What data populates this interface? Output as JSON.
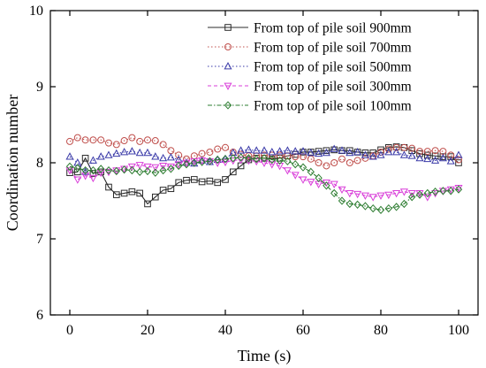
{
  "chart_data": {
    "type": "line",
    "xlabel": "Time (s)",
    "ylabel": "Coordination number",
    "xlim": [
      -5,
      105
    ],
    "ylim": [
      6,
      10
    ],
    "xticks": [
      0,
      20,
      40,
      60,
      80,
      100
    ],
    "yticks": [
      6,
      7,
      8,
      9,
      10
    ],
    "grid": false,
    "legend_position": "top-right",
    "series": [
      {
        "name": "From top of pile soil 900mm",
        "color": "#2b2b2b",
        "marker": "square",
        "line_style": "solid",
        "x": [
          0,
          2,
          4,
          6,
          8,
          10,
          12,
          14,
          16,
          18,
          20,
          22,
          24,
          26,
          28,
          30,
          32,
          34,
          36,
          38,
          40,
          42,
          44,
          46,
          48,
          50,
          52,
          54,
          56,
          58,
          60,
          62,
          64,
          66,
          68,
          70,
          72,
          74,
          76,
          78,
          80,
          82,
          84,
          86,
          88,
          90,
          92,
          94,
          96,
          98,
          100
        ],
        "y": [
          7.87,
          7.88,
          8.06,
          7.86,
          7.88,
          7.68,
          7.58,
          7.6,
          7.62,
          7.6,
          7.46,
          7.55,
          7.64,
          7.66,
          7.74,
          7.77,
          7.78,
          7.75,
          7.76,
          7.74,
          7.78,
          7.88,
          7.96,
          8.04,
          8.06,
          8.06,
          8.05,
          8.06,
          8.09,
          8.11,
          8.14,
          8.14,
          8.15,
          8.16,
          8.17,
          8.16,
          8.16,
          8.14,
          8.13,
          8.13,
          8.17,
          8.2,
          8.21,
          8.2,
          8.16,
          8.12,
          8.1,
          8.09,
          8.08,
          8.08,
          8.0
        ]
      },
      {
        "name": "From top of pile soil 700mm",
        "color": "#c0504d",
        "marker": "circle",
        "line_style": "dotted",
        "x": [
          0,
          2,
          4,
          6,
          8,
          10,
          12,
          14,
          16,
          18,
          20,
          22,
          24,
          26,
          28,
          30,
          32,
          34,
          36,
          38,
          40,
          42,
          44,
          46,
          48,
          50,
          52,
          54,
          56,
          58,
          60,
          62,
          64,
          66,
          68,
          70,
          72,
          74,
          76,
          78,
          80,
          82,
          84,
          86,
          88,
          90,
          92,
          94,
          96,
          98,
          100
        ],
        "y": [
          8.28,
          8.33,
          8.3,
          8.3,
          8.3,
          8.26,
          8.24,
          8.29,
          8.33,
          8.28,
          8.3,
          8.29,
          8.24,
          8.16,
          8.1,
          8.05,
          8.09,
          8.12,
          8.14,
          8.18,
          8.2,
          8.14,
          8.11,
          8.09,
          8.09,
          8.1,
          8.1,
          8.1,
          8.09,
          8.08,
          8.08,
          8.05,
          8.0,
          7.96,
          8.0,
          8.05,
          8.0,
          8.03,
          8.06,
          8.09,
          8.14,
          8.18,
          8.2,
          8.2,
          8.19,
          8.15,
          8.15,
          8.16,
          8.15,
          8.1,
          8.04
        ]
      },
      {
        "name": "From top of pile soil 500mm",
        "color": "#3a3aa8",
        "marker": "triangle-up",
        "line_style": "dotted",
        "x": [
          0,
          2,
          4,
          6,
          8,
          10,
          12,
          14,
          16,
          18,
          20,
          22,
          24,
          26,
          28,
          30,
          32,
          34,
          36,
          38,
          40,
          42,
          44,
          46,
          48,
          50,
          52,
          54,
          56,
          58,
          60,
          62,
          64,
          66,
          68,
          70,
          72,
          74,
          76,
          78,
          80,
          82,
          84,
          86,
          88,
          90,
          92,
          94,
          96,
          98,
          100
        ],
        "y": [
          8.08,
          8.0,
          7.88,
          8.03,
          8.08,
          8.1,
          8.12,
          8.14,
          8.15,
          8.13,
          8.13,
          8.08,
          8.06,
          8.07,
          8.04,
          8.0,
          7.99,
          8.03,
          8.01,
          8.04,
          8.05,
          8.13,
          8.16,
          8.17,
          8.16,
          8.16,
          8.14,
          8.15,
          8.16,
          8.15,
          8.15,
          8.13,
          8.12,
          8.13,
          8.18,
          8.16,
          8.13,
          8.14,
          8.1,
          8.08,
          8.1,
          8.14,
          8.14,
          8.1,
          8.09,
          8.06,
          8.05,
          8.03,
          8.06,
          8.02,
          8.1
        ]
      },
      {
        "name": "From top of pile soil 300mm",
        "color": "#d93fd9",
        "marker": "triangle-down",
        "line_style": "dashed",
        "x": [
          0,
          2,
          4,
          6,
          8,
          10,
          12,
          14,
          16,
          18,
          20,
          22,
          24,
          26,
          28,
          30,
          32,
          34,
          36,
          38,
          40,
          42,
          44,
          46,
          48,
          50,
          52,
          54,
          56,
          58,
          60,
          62,
          64,
          66,
          68,
          70,
          72,
          74,
          76,
          78,
          80,
          82,
          84,
          86,
          88,
          90,
          92,
          94,
          96,
          98,
          100
        ],
        "y": [
          7.9,
          7.78,
          7.83,
          7.8,
          7.87,
          7.88,
          7.9,
          7.92,
          7.95,
          7.97,
          7.95,
          7.94,
          7.96,
          7.95,
          7.98,
          8.0,
          8.02,
          8.03,
          8.02,
          8.0,
          8.01,
          8.03,
          8.04,
          8.03,
          8.02,
          8.0,
          7.98,
          7.96,
          7.9,
          7.84,
          7.78,
          7.75,
          7.72,
          7.74,
          7.72,
          7.65,
          7.6,
          7.59,
          7.57,
          7.55,
          7.57,
          7.58,
          7.6,
          7.62,
          7.6,
          7.6,
          7.55,
          7.6,
          7.63,
          7.65,
          7.67
        ]
      },
      {
        "name": "From top of pile soil 100mm",
        "color": "#2e7d32",
        "marker": "diamond",
        "line_style": "dash-dot",
        "x": [
          0,
          2,
          4,
          6,
          8,
          10,
          12,
          14,
          16,
          18,
          20,
          22,
          24,
          26,
          28,
          30,
          32,
          34,
          36,
          38,
          40,
          42,
          44,
          46,
          48,
          50,
          52,
          54,
          56,
          58,
          60,
          62,
          64,
          66,
          68,
          70,
          72,
          74,
          76,
          78,
          80,
          82,
          84,
          86,
          88,
          90,
          92,
          94,
          96,
          98,
          100
        ],
        "y": [
          7.95,
          7.93,
          7.9,
          7.9,
          7.92,
          7.9,
          7.89,
          7.91,
          7.9,
          7.88,
          7.89,
          7.87,
          7.9,
          7.92,
          7.96,
          7.98,
          8.0,
          8.01,
          8.02,
          8.04,
          8.05,
          8.06,
          8.07,
          8.06,
          8.05,
          8.06,
          8.04,
          8.03,
          8.02,
          7.98,
          7.94,
          7.88,
          7.8,
          7.7,
          7.6,
          7.5,
          7.46,
          7.45,
          7.43,
          7.4,
          7.38,
          7.4,
          7.42,
          7.46,
          7.55,
          7.58,
          7.6,
          7.62,
          7.63,
          7.63,
          7.65
        ]
      }
    ]
  }
}
